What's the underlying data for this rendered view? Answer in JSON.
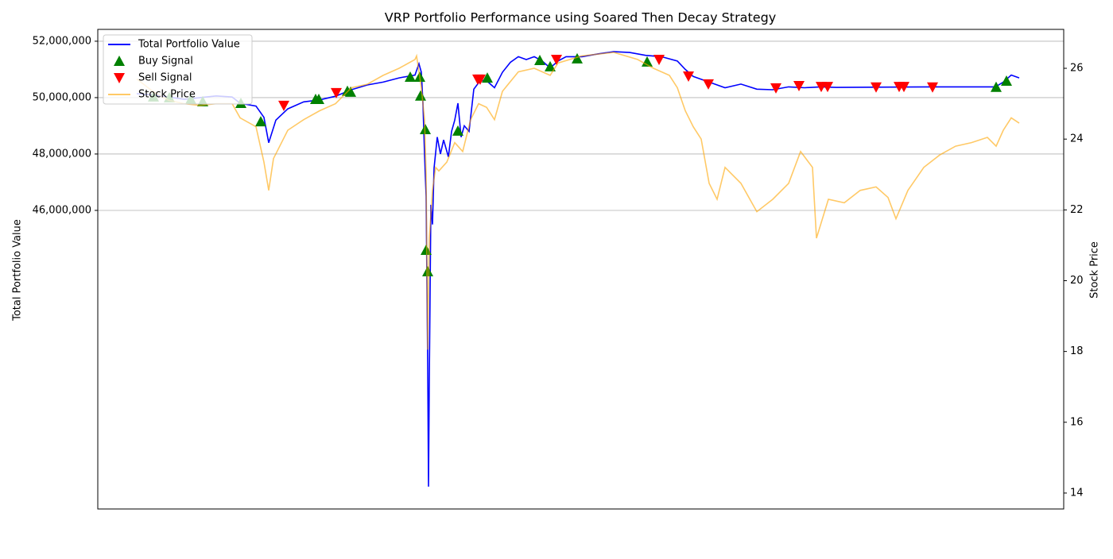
{
  "chart_data": {
    "type": "line",
    "title": "VRP Portfolio Performance using Soared Then Decay Strategy",
    "ylabel": "Total Portfolio Value",
    "y2label": "Stock Price",
    "xlim": [
      -49,
      1166
    ],
    "ylim": [
      35410000,
      52420000
    ],
    "yticks": [
      {
        "value": 46000000,
        "label": "46,000,000"
      },
      {
        "value": 48000000,
        "label": "48,000,000"
      },
      {
        "value": 50000000,
        "label": "50,000,000"
      },
      {
        "value": 52000000,
        "label": "52,000,000"
      }
    ],
    "y2lim": [
      13.55,
      27.1
    ],
    "y2ticks": [
      14,
      16,
      18,
      20,
      22,
      24,
      26
    ],
    "grid": true,
    "legend": "upper left",
    "series": [
      {
        "name": "Total Portfolio Value",
        "type": "line",
        "color": "#0000ff",
        "axis": "y",
        "x": [
          0,
          20,
          40,
          60,
          80,
          100,
          120,
          130,
          150,
          160,
          166,
          175,
          190,
          210,
          230,
          250,
          270,
          290,
          310,
          330,
          350,
          355,
          358,
          360,
          362,
          364,
          366,
          367,
          368,
          370,
          372,
          374,
          378,
          382,
          386,
          392,
          396,
          400,
          404,
          408,
          412,
          418,
          424,
          432,
          440,
          450,
          460,
          470,
          480,
          490,
          500,
          510,
          520,
          530,
          540,
          560,
          580,
          600,
          620,
          640,
          660,
          680,
          690,
          700,
          720,
          740,
          760,
          780,
          800,
          820,
          840,
          860,
          880,
          1000,
          1080,
          1090,
          1100,
          1110
        ],
        "values": [
          50140000,
          50100000,
          50020000,
          49940000,
          50000000,
          50060000,
          50020000,
          49800000,
          49700000,
          49300000,
          48400000,
          49200000,
          49600000,
          49850000,
          49920000,
          50050000,
          50280000,
          50450000,
          50550000,
          50700000,
          50800000,
          51200000,
          50900000,
          49800000,
          48000000,
          46500000,
          40500000,
          36200000,
          40000000,
          46200000,
          45500000,
          47500000,
          48600000,
          48000000,
          48500000,
          47900000,
          48800000,
          49200000,
          49800000,
          48600000,
          49000000,
          48800000,
          50300000,
          50600000,
          50600000,
          50350000,
          50900000,
          51250000,
          51450000,
          51350000,
          51450000,
          51300000,
          51050000,
          51300000,
          51450000,
          51450000,
          51550000,
          51630000,
          51600000,
          51500000,
          51450000,
          51300000,
          51000000,
          50750000,
          50550000,
          50350000,
          50480000,
          50300000,
          50280000,
          50380000,
          50350000,
          50380000,
          50360000,
          50380000,
          50380000,
          50550000,
          50800000,
          50700000
        ]
      },
      {
        "name": "Buy Signal",
        "type": "scatter",
        "marker": "^",
        "color": "#008000",
        "axis": "y",
        "x": [
          21,
          41,
          68,
          83,
          131,
          156,
          225,
          229,
          265,
          269,
          344,
          356,
          357,
          363,
          364,
          366,
          404,
          441,
          507,
          520,
          554,
          642,
          1081,
          1094
        ],
        "values": [
          50030000,
          50000000,
          49940000,
          49860000,
          49800000,
          49150000,
          49940000,
          49940000,
          50230000,
          50200000,
          50730000,
          50730000,
          50060000,
          48870000,
          44590000,
          43830000,
          48820000,
          50700000,
          51320000,
          51100000,
          51380000,
          51270000,
          50370000,
          50590000
        ]
      },
      {
        "name": "Sell Signal",
        "type": "scatter",
        "marker": "v",
        "color": "#ff0000",
        "axis": "y",
        "x": [
          185,
          251,
          429,
          432,
          528,
          657,
          694,
          719,
          804,
          833,
          861,
          869,
          930,
          959,
          965,
          1001
        ],
        "values": [
          49720000,
          50170000,
          50650000,
          50650000,
          51350000,
          51350000,
          50760000,
          50480000,
          50340000,
          50420000,
          50390000,
          50390000,
          50370000,
          50390000,
          50390000,
          50370000
        ]
      },
      {
        "name": "Stock Price",
        "type": "line",
        "color": "#ffa500",
        "opacity": 0.6,
        "axis": "y2",
        "x": [
          0,
          20,
          40,
          60,
          80,
          100,
          120,
          130,
          150,
          160,
          166,
          172,
          190,
          210,
          230,
          250,
          270,
          290,
          310,
          330,
          350,
          352,
          358,
          362,
          364,
          366,
          368,
          372,
          376,
          380,
          390,
          400,
          410,
          420,
          430,
          440,
          450,
          460,
          480,
          500,
          520,
          530,
          560,
          580,
          600,
          630,
          650,
          670,
          680,
          690,
          700,
          710,
          720,
          730,
          740,
          760,
          780,
          800,
          820,
          835,
          850,
          855,
          870,
          890,
          910,
          930,
          945,
          955,
          970,
          990,
          1010,
          1030,
          1050,
          1070,
          1081,
          1090,
          1100,
          1110
        ],
        "values": [
          25.7,
          25.35,
          25.1,
          25.0,
          24.95,
          25.0,
          25.0,
          24.6,
          24.35,
          23.35,
          22.55,
          23.45,
          24.25,
          24.55,
          24.8,
          25.0,
          25.45,
          25.55,
          25.8,
          26.0,
          26.25,
          26.35,
          25.45,
          24.55,
          23.0,
          18.05,
          21.2,
          22.55,
          23.2,
          23.1,
          23.35,
          23.9,
          23.65,
          24.55,
          25.0,
          24.9,
          24.55,
          25.35,
          25.9,
          26.0,
          25.8,
          26.15,
          26.35,
          26.4,
          26.45,
          26.25,
          26.0,
          25.8,
          25.45,
          24.8,
          24.35,
          24.0,
          22.75,
          22.3,
          23.2,
          22.75,
          21.95,
          22.3,
          22.75,
          23.65,
          23.2,
          21.2,
          22.3,
          22.2,
          22.55,
          22.65,
          22.35,
          21.75,
          22.55,
          23.2,
          23.55,
          23.8,
          23.9,
          24.05,
          23.8,
          24.25,
          24.6,
          24.45
        ]
      }
    ]
  }
}
